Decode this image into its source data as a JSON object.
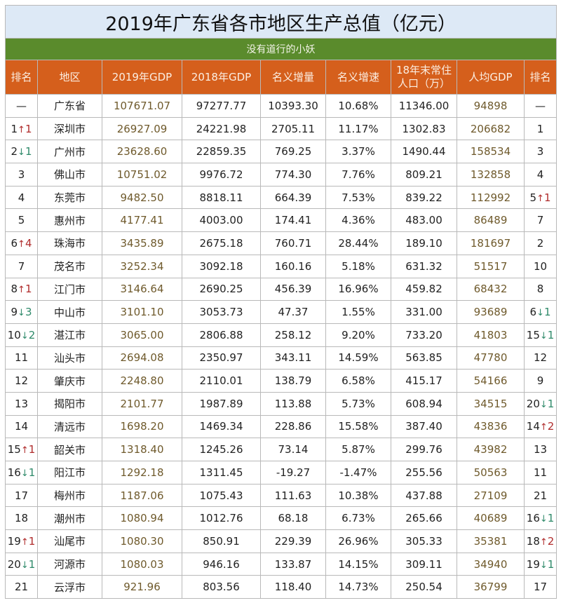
{
  "title": "2019年广东省各市地区生产总值（亿元）",
  "subtitle": "没有道行的小妖",
  "colors": {
    "title_bg": "#dde9f6",
    "subtitle_bg": "#5a8b2c",
    "header_bg": "#d55f1c",
    "up": "#b02c2c",
    "down": "#2f8a6a",
    "highlight_text": "#6f5a2c"
  },
  "headers": [
    "排名",
    "地区",
    "2019年GDP",
    "2018年GDP",
    "名义增量",
    "名义增速",
    "18年末常住人口（万）",
    "人均GDP",
    "排名"
  ],
  "rows": [
    {
      "rank": {
        "n": "—",
        "dir": "",
        "d": ""
      },
      "region": "广东省",
      "gdp2019": "107671.07",
      "gdp2018": "97277.77",
      "inc": "10393.30",
      "rate": "10.68%",
      "pop": "11346.00",
      "per": "94898",
      "prank": {
        "n": "—",
        "dir": "",
        "d": ""
      }
    },
    {
      "rank": {
        "n": "1",
        "dir": "up",
        "d": "1"
      },
      "region": "深圳市",
      "gdp2019": "26927.09",
      "gdp2018": "24221.98",
      "inc": "2705.11",
      "rate": "11.17%",
      "pop": "1302.83",
      "per": "206682",
      "prank": {
        "n": "1",
        "dir": "",
        "d": ""
      }
    },
    {
      "rank": {
        "n": "2",
        "dir": "down",
        "d": "1"
      },
      "region": "广州市",
      "gdp2019": "23628.60",
      "gdp2018": "22859.35",
      "inc": "769.25",
      "rate": "3.37%",
      "pop": "1490.44",
      "per": "158534",
      "prank": {
        "n": "3",
        "dir": "",
        "d": ""
      }
    },
    {
      "rank": {
        "n": "3",
        "dir": "",
        "d": ""
      },
      "region": "佛山市",
      "gdp2019": "10751.02",
      "gdp2018": "9976.72",
      "inc": "774.30",
      "rate": "7.76%",
      "pop": "809.21",
      "per": "132858",
      "prank": {
        "n": "4",
        "dir": "",
        "d": ""
      }
    },
    {
      "rank": {
        "n": "4",
        "dir": "",
        "d": ""
      },
      "region": "东莞市",
      "gdp2019": "9482.50",
      "gdp2018": "8818.11",
      "inc": "664.39",
      "rate": "7.53%",
      "pop": "839.22",
      "per": "112992",
      "prank": {
        "n": "5",
        "dir": "up",
        "d": "1"
      }
    },
    {
      "rank": {
        "n": "5",
        "dir": "",
        "d": ""
      },
      "region": "惠州市",
      "gdp2019": "4177.41",
      "gdp2018": "4003.00",
      "inc": "174.41",
      "rate": "4.36%",
      "pop": "483.00",
      "per": "86489",
      "prank": {
        "n": "7",
        "dir": "",
        "d": ""
      }
    },
    {
      "rank": {
        "n": "6",
        "dir": "up",
        "d": "4"
      },
      "region": "珠海市",
      "gdp2019": "3435.89",
      "gdp2018": "2675.18",
      "inc": "760.71",
      "rate": "28.44%",
      "pop": "189.10",
      "per": "181697",
      "prank": {
        "n": "2",
        "dir": "",
        "d": ""
      }
    },
    {
      "rank": {
        "n": "7",
        "dir": "",
        "d": ""
      },
      "region": "茂名市",
      "gdp2019": "3252.34",
      "gdp2018": "3092.18",
      "inc": "160.16",
      "rate": "5.18%",
      "pop": "631.32",
      "per": "51517",
      "prank": {
        "n": "10",
        "dir": "",
        "d": ""
      }
    },
    {
      "rank": {
        "n": "8",
        "dir": "up",
        "d": "1"
      },
      "region": "江门市",
      "gdp2019": "3146.64",
      "gdp2018": "2690.25",
      "inc": "456.39",
      "rate": "16.96%",
      "pop": "459.82",
      "per": "68432",
      "prank": {
        "n": "8",
        "dir": "",
        "d": ""
      }
    },
    {
      "rank": {
        "n": "9",
        "dir": "down",
        "d": "3"
      },
      "region": "中山市",
      "gdp2019": "3101.10",
      "gdp2018": "3053.73",
      "inc": "47.37",
      "rate": "1.55%",
      "pop": "331.00",
      "per": "93689",
      "prank": {
        "n": "6",
        "dir": "down",
        "d": "1"
      }
    },
    {
      "rank": {
        "n": "10",
        "dir": "down",
        "d": "2"
      },
      "region": "湛江市",
      "gdp2019": "3065.00",
      "gdp2018": "2806.88",
      "inc": "258.12",
      "rate": "9.20%",
      "pop": "733.20",
      "per": "41803",
      "prank": {
        "n": "15",
        "dir": "down",
        "d": "1"
      }
    },
    {
      "rank": {
        "n": "11",
        "dir": "",
        "d": ""
      },
      "region": "汕头市",
      "gdp2019": "2694.08",
      "gdp2018": "2350.97",
      "inc": "343.11",
      "rate": "14.59%",
      "pop": "563.85",
      "per": "47780",
      "prank": {
        "n": "12",
        "dir": "",
        "d": ""
      }
    },
    {
      "rank": {
        "n": "12",
        "dir": "",
        "d": ""
      },
      "region": "肇庆市",
      "gdp2019": "2248.80",
      "gdp2018": "2110.01",
      "inc": "138.79",
      "rate": "6.58%",
      "pop": "415.17",
      "per": "54166",
      "prank": {
        "n": "9",
        "dir": "",
        "d": ""
      }
    },
    {
      "rank": {
        "n": "13",
        "dir": "",
        "d": ""
      },
      "region": "揭阳市",
      "gdp2019": "2101.77",
      "gdp2018": "1987.89",
      "inc": "113.88",
      "rate": "5.73%",
      "pop": "608.94",
      "per": "34515",
      "prank": {
        "n": "20",
        "dir": "down",
        "d": "1"
      }
    },
    {
      "rank": {
        "n": "14",
        "dir": "",
        "d": ""
      },
      "region": "清远市",
      "gdp2019": "1698.20",
      "gdp2018": "1469.34",
      "inc": "228.86",
      "rate": "15.58%",
      "pop": "387.40",
      "per": "43836",
      "prank": {
        "n": "14",
        "dir": "up",
        "d": "2"
      }
    },
    {
      "rank": {
        "n": "15",
        "dir": "up",
        "d": "1"
      },
      "region": "韶关市",
      "gdp2019": "1318.40",
      "gdp2018": "1245.26",
      "inc": "73.14",
      "rate": "5.87%",
      "pop": "299.76",
      "per": "43982",
      "prank": {
        "n": "13",
        "dir": "",
        "d": ""
      }
    },
    {
      "rank": {
        "n": "16",
        "dir": "down",
        "d": "1"
      },
      "region": "阳江市",
      "gdp2019": "1292.18",
      "gdp2018": "1311.45",
      "inc": "-19.27",
      "rate": "-1.47%",
      "pop": "255.56",
      "per": "50563",
      "prank": {
        "n": "11",
        "dir": "",
        "d": ""
      }
    },
    {
      "rank": {
        "n": "17",
        "dir": "",
        "d": ""
      },
      "region": "梅州市",
      "gdp2019": "1187.06",
      "gdp2018": "1075.43",
      "inc": "111.63",
      "rate": "10.38%",
      "pop": "437.88",
      "per": "27109",
      "prank": {
        "n": "21",
        "dir": "",
        "d": ""
      }
    },
    {
      "rank": {
        "n": "18",
        "dir": "",
        "d": ""
      },
      "region": "潮州市",
      "gdp2019": "1080.94",
      "gdp2018": "1012.76",
      "inc": "68.18",
      "rate": "6.73%",
      "pop": "265.66",
      "per": "40689",
      "prank": {
        "n": "16",
        "dir": "down",
        "d": "1"
      }
    },
    {
      "rank": {
        "n": "19",
        "dir": "up",
        "d": "1"
      },
      "region": "汕尾市",
      "gdp2019": "1080.30",
      "gdp2018": "850.91",
      "inc": "229.39",
      "rate": "26.96%",
      "pop": "305.33",
      "per": "35381",
      "prank": {
        "n": "18",
        "dir": "up",
        "d": "2"
      }
    },
    {
      "rank": {
        "n": "20",
        "dir": "down",
        "d": "1"
      },
      "region": "河源市",
      "gdp2019": "1080.03",
      "gdp2018": "946.16",
      "inc": "133.87",
      "rate": "14.15%",
      "pop": "309.11",
      "per": "34940",
      "prank": {
        "n": "19",
        "dir": "down",
        "d": "1"
      }
    },
    {
      "rank": {
        "n": "21",
        "dir": "",
        "d": ""
      },
      "region": "云浮市",
      "gdp2019": "921.96",
      "gdp2018": "803.56",
      "inc": "118.40",
      "rate": "14.73%",
      "pop": "250.54",
      "per": "36799",
      "prank": {
        "n": "17",
        "dir": "",
        "d": ""
      }
    }
  ]
}
